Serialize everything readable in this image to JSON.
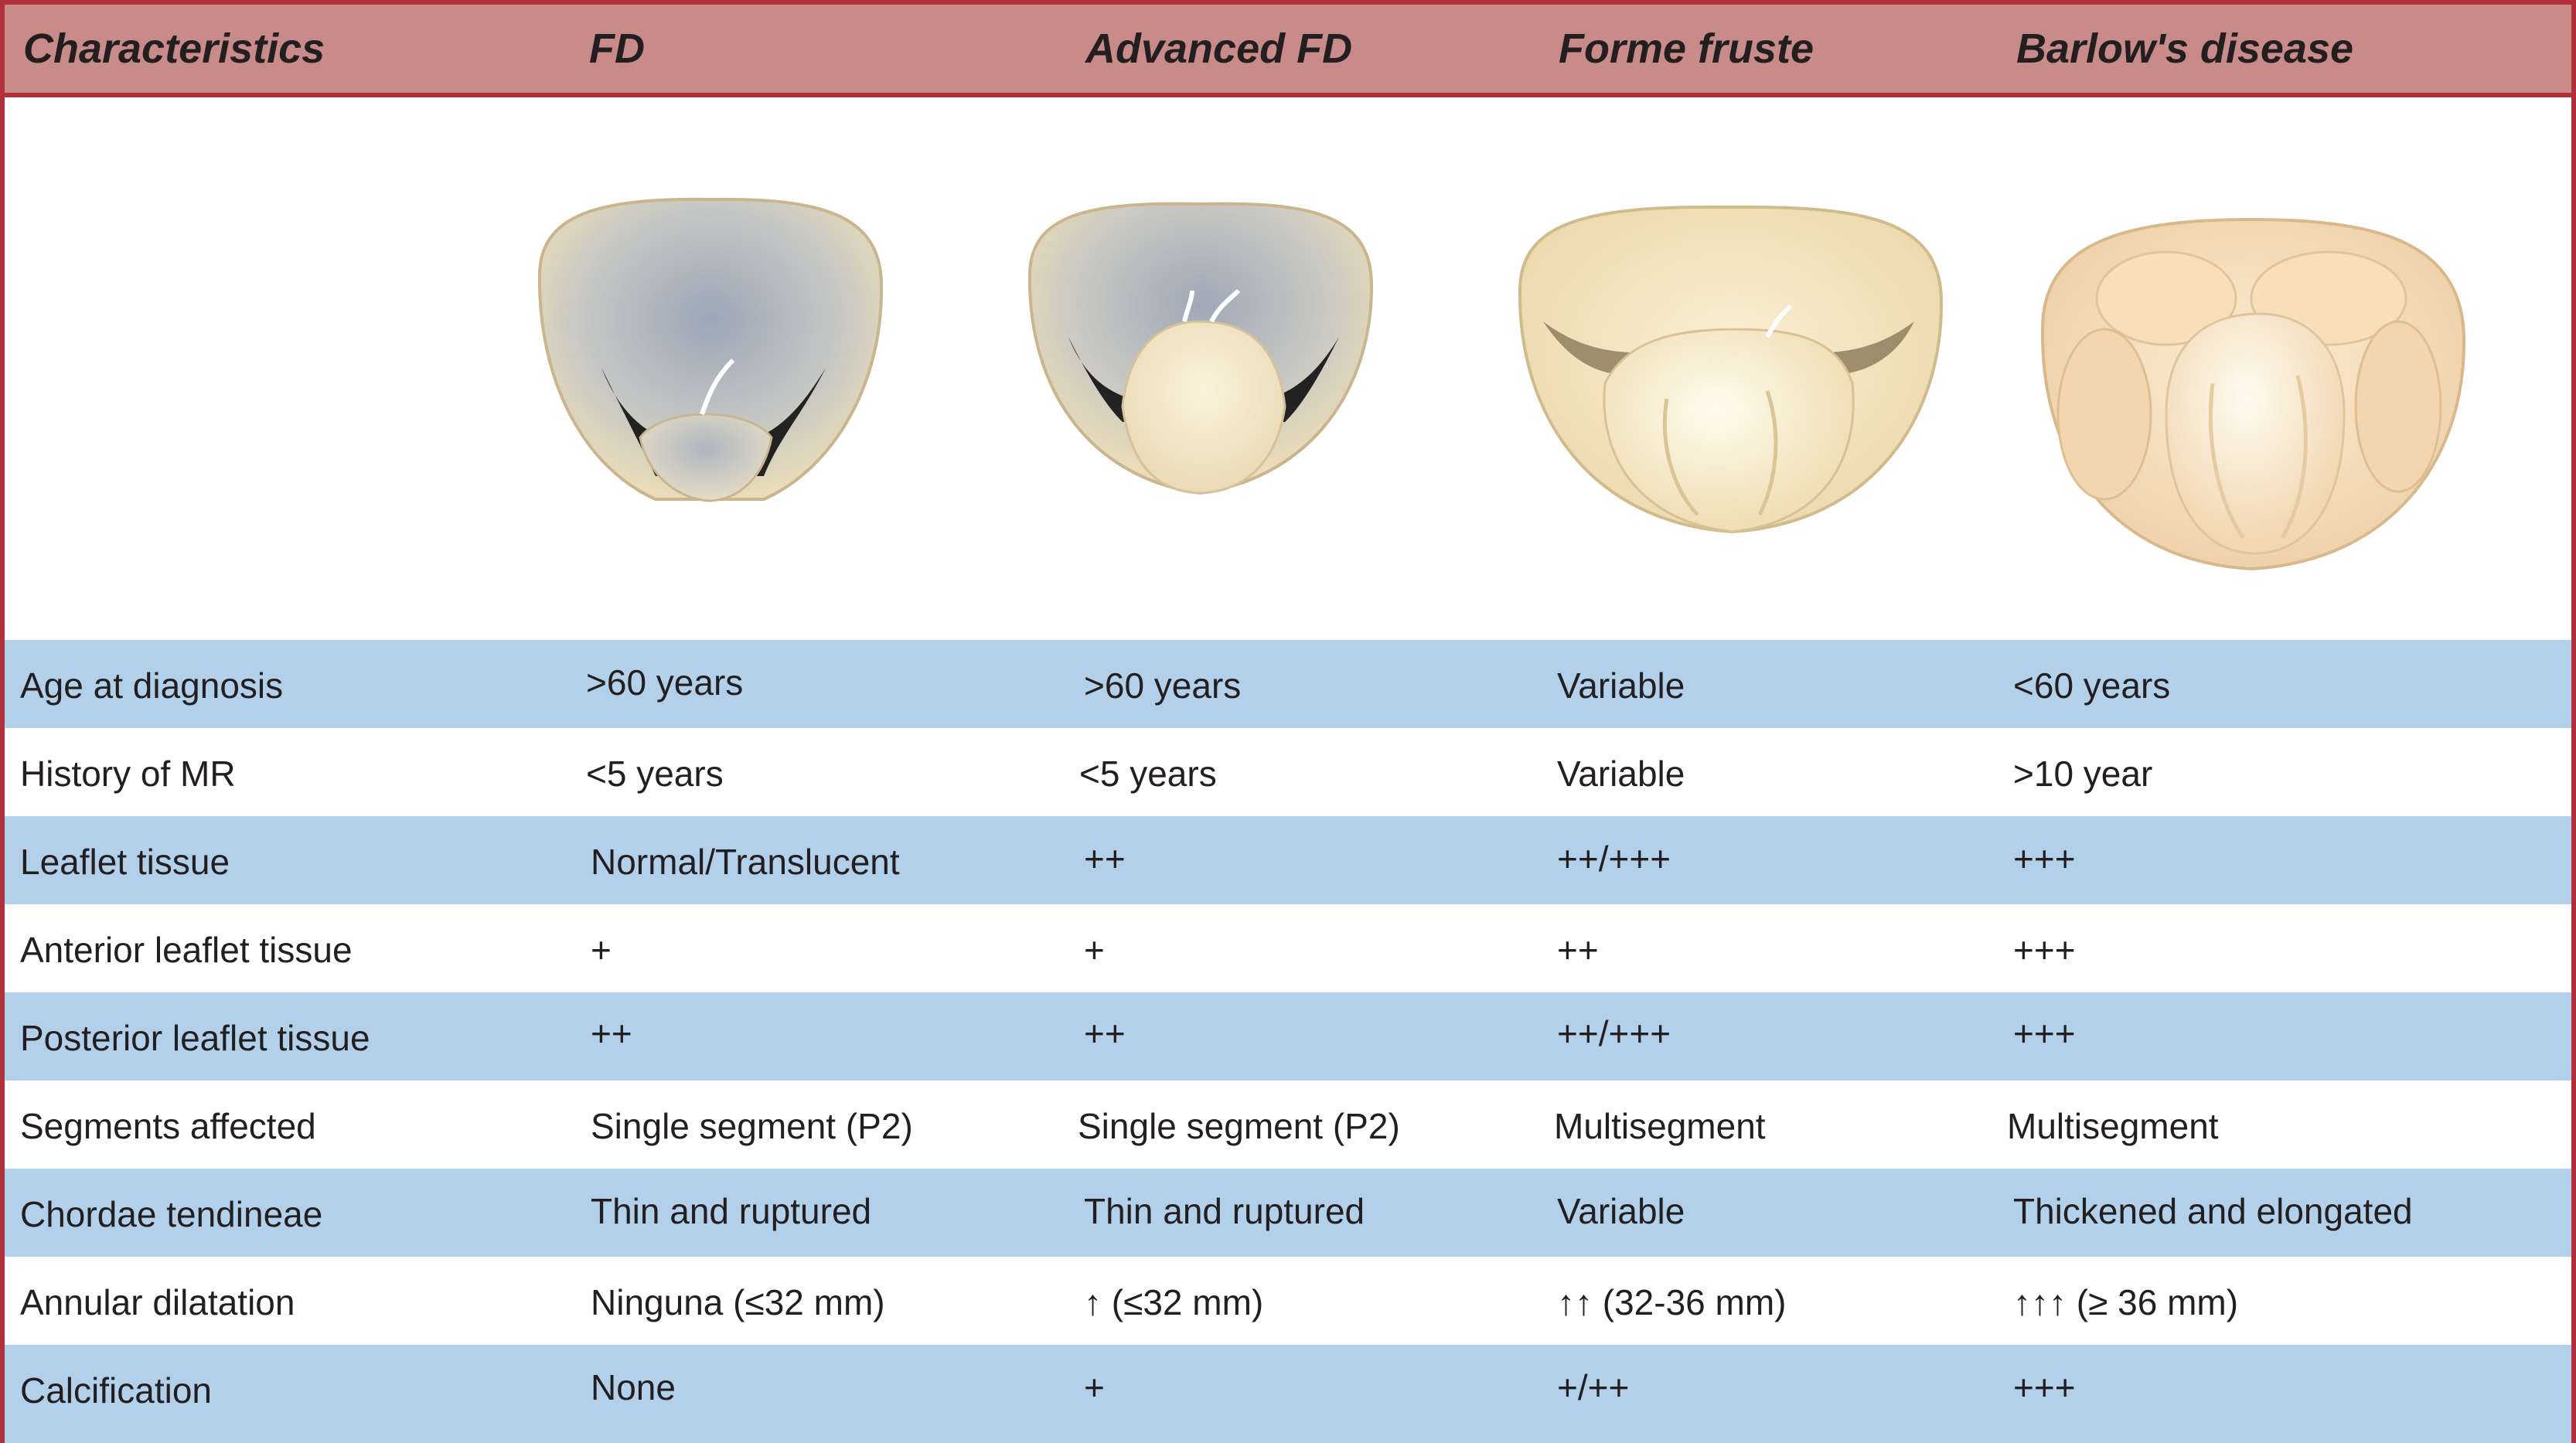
{
  "header": [
    "Characteristics",
    "FD",
    "Advanced FD",
    "Forme fruste",
    "Barlow's disease"
  ],
  "rows": [
    {
      "label": "Age at diagnosis",
      "values": [
        ">60 years",
        ">60 years",
        "Variable",
        "<60 years"
      ]
    },
    {
      "label": "History of MR",
      "values": [
        "<5 years",
        "<5 years",
        "Variable",
        ">10 year"
      ]
    },
    {
      "label": "Leaflet tissue",
      "values": [
        "Normal/Translucent",
        "++",
        "++/+++",
        "+++"
      ]
    },
    {
      "label": "Anterior leaflet tissue",
      "values": [
        "+",
        "+",
        "++",
        "+++"
      ]
    },
    {
      "label": "Posterior leaflet tissue",
      "values": [
        "++",
        "++",
        "++/+++",
        "+++"
      ]
    },
    {
      "label": "Segments affected",
      "values": [
        "Single segment (P2)",
        "Single segment (P2)",
        "Multisegment",
        "Multisegment"
      ]
    },
    {
      "label": "Chordae tendineae",
      "values": [
        "Thin and ruptured",
        "Thin and ruptured",
        "Variable",
        "Thickened and elongated"
      ]
    },
    {
      "label": "Annular dilatation",
      "values": [
        "Ninguna (≤32 mm)",
        "↑ (≤32 mm)",
        "↑↑ (32-36 mm)",
        "↑↑↑ (≥ 36 mm)"
      ]
    },
    {
      "label": "Calcification",
      "values": [
        "None",
        "+",
        "+/++",
        "+++"
      ]
    }
  ],
  "illustrations": [
    "mitral-valve-fd",
    "mitral-valve-advanced-fd",
    "mitral-valve-forme-fruste",
    "mitral-valve-barlows-disease"
  ],
  "colors": {
    "border": "#b0303c",
    "header_bg": "#c98a8a",
    "row_blue": "#b3d0ea"
  }
}
